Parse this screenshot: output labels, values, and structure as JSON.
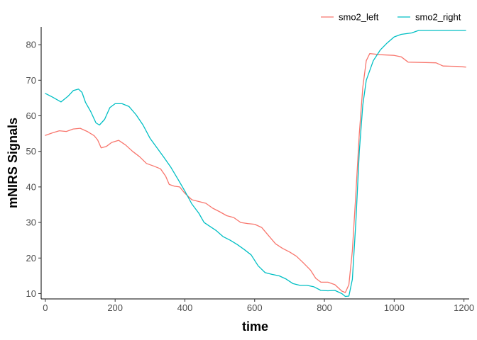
{
  "chart_data": {
    "type": "line",
    "xlabel": "time",
    "ylabel": "mNIRS Signals",
    "xlim": [
      -12,
      1215
    ],
    "ylim": [
      8.5,
      85
    ],
    "x_ticks": [
      0,
      200,
      400,
      600,
      800,
      1000,
      1200
    ],
    "y_ticks": [
      10,
      20,
      30,
      40,
      50,
      60,
      70,
      80
    ],
    "grid": false,
    "legend_position": "top-right",
    "series": [
      {
        "name": "smo2_left",
        "color": "#F8766D",
        "points": [
          [
            0,
            54.5
          ],
          [
            20,
            55.2
          ],
          [
            40,
            55.8
          ],
          [
            60,
            55.6
          ],
          [
            80,
            56.3
          ],
          [
            100,
            56.5
          ],
          [
            120,
            55.6
          ],
          [
            140,
            54.4
          ],
          [
            150,
            53.2
          ],
          [
            160,
            51.0
          ],
          [
            175,
            51.4
          ],
          [
            190,
            52.5
          ],
          [
            210,
            53.1
          ],
          [
            230,
            51.8
          ],
          [
            250,
            50.0
          ],
          [
            270,
            48.5
          ],
          [
            290,
            46.6
          ],
          [
            310,
            45.9
          ],
          [
            330,
            45.1
          ],
          [
            345,
            43.0
          ],
          [
            355,
            40.7
          ],
          [
            370,
            40.2
          ],
          [
            385,
            40.0
          ],
          [
            400,
            38.2
          ],
          [
            420,
            36.4
          ],
          [
            440,
            35.9
          ],
          [
            460,
            35.4
          ],
          [
            480,
            34.0
          ],
          [
            500,
            33.0
          ],
          [
            520,
            31.9
          ],
          [
            540,
            31.4
          ],
          [
            560,
            30.0
          ],
          [
            580,
            29.7
          ],
          [
            600,
            29.5
          ],
          [
            620,
            28.6
          ],
          [
            640,
            26.3
          ],
          [
            660,
            24.0
          ],
          [
            680,
            22.7
          ],
          [
            700,
            21.7
          ],
          [
            720,
            20.5
          ],
          [
            740,
            18.6
          ],
          [
            760,
            16.6
          ],
          [
            775,
            14.3
          ],
          [
            790,
            13.2
          ],
          [
            810,
            13.2
          ],
          [
            830,
            12.5
          ],
          [
            850,
            10.7
          ],
          [
            860,
            10.3
          ],
          [
            870,
            12.5
          ],
          [
            880,
            22.0
          ],
          [
            890,
            38.0
          ],
          [
            900,
            55.0
          ],
          [
            910,
            68.0
          ],
          [
            920,
            75.5
          ],
          [
            930,
            77.5
          ],
          [
            960,
            77.2
          ],
          [
            1000,
            77.0
          ],
          [
            1020,
            76.6
          ],
          [
            1040,
            75.1
          ],
          [
            1080,
            75.0
          ],
          [
            1120,
            74.9
          ],
          [
            1140,
            74.0
          ],
          [
            1180,
            73.9
          ],
          [
            1205,
            73.7
          ]
        ]
      },
      {
        "name": "smo2_right",
        "color": "#00BFC4",
        "points": [
          [
            0,
            66.3
          ],
          [
            20,
            65.3
          ],
          [
            45,
            63.9
          ],
          [
            65,
            65.5
          ],
          [
            80,
            67.1
          ],
          [
            95,
            67.5
          ],
          [
            105,
            66.6
          ],
          [
            115,
            63.8
          ],
          [
            130,
            61.2
          ],
          [
            145,
            58.0
          ],
          [
            155,
            57.4
          ],
          [
            170,
            59.0
          ],
          [
            185,
            62.3
          ],
          [
            200,
            63.4
          ],
          [
            220,
            63.4
          ],
          [
            240,
            62.6
          ],
          [
            260,
            60.3
          ],
          [
            280,
            57.4
          ],
          [
            300,
            53.7
          ],
          [
            320,
            51.0
          ],
          [
            340,
            48.3
          ],
          [
            360,
            45.5
          ],
          [
            380,
            42.2
          ],
          [
            400,
            38.8
          ],
          [
            420,
            35.2
          ],
          [
            440,
            32.6
          ],
          [
            455,
            30.0
          ],
          [
            470,
            29.0
          ],
          [
            490,
            27.7
          ],
          [
            510,
            26.0
          ],
          [
            530,
            25.0
          ],
          [
            550,
            23.8
          ],
          [
            570,
            22.4
          ],
          [
            590,
            20.9
          ],
          [
            610,
            17.8
          ],
          [
            630,
            15.9
          ],
          [
            650,
            15.4
          ],
          [
            670,
            15.0
          ],
          [
            690,
            14.1
          ],
          [
            710,
            12.8
          ],
          [
            730,
            12.3
          ],
          [
            750,
            12.3
          ],
          [
            770,
            11.9
          ],
          [
            790,
            10.9
          ],
          [
            810,
            10.8
          ],
          [
            830,
            10.9
          ],
          [
            850,
            10.0
          ],
          [
            860,
            9.2
          ],
          [
            870,
            9.3
          ],
          [
            880,
            14.0
          ],
          [
            890,
            30.0
          ],
          [
            900,
            50.0
          ],
          [
            910,
            63.0
          ],
          [
            920,
            70.0
          ],
          [
            940,
            75.5
          ],
          [
            960,
            78.5
          ],
          [
            980,
            80.5
          ],
          [
            1000,
            82.2
          ],
          [
            1020,
            82.9
          ],
          [
            1050,
            83.3
          ],
          [
            1070,
            84.0
          ],
          [
            1100,
            84.0
          ],
          [
            1150,
            84.0
          ],
          [
            1205,
            84.0
          ]
        ]
      }
    ]
  }
}
